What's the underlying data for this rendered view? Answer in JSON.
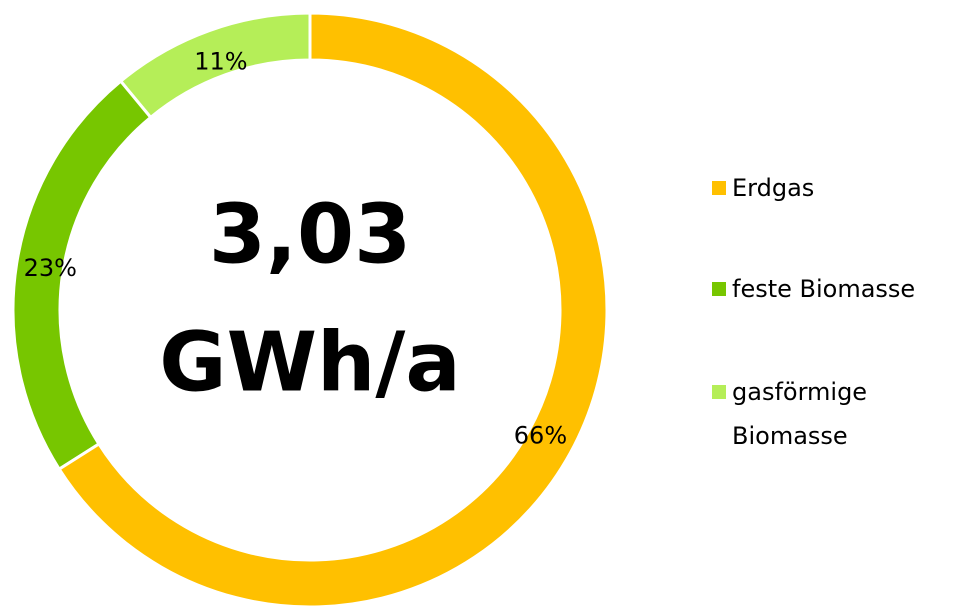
{
  "chart_data": {
    "type": "donut",
    "categories": [
      "Erdgas",
      "feste Biomasse",
      "gasförmige Biomasse"
    ],
    "values": [
      66,
      23,
      11
    ],
    "value_labels": [
      "66%",
      "23%",
      "11%"
    ],
    "colors": [
      "#ffc000",
      "#77c600",
      "#b5ee58"
    ],
    "center_text": [
      "3,03",
      "GWh/a"
    ],
    "legend": "right"
  }
}
